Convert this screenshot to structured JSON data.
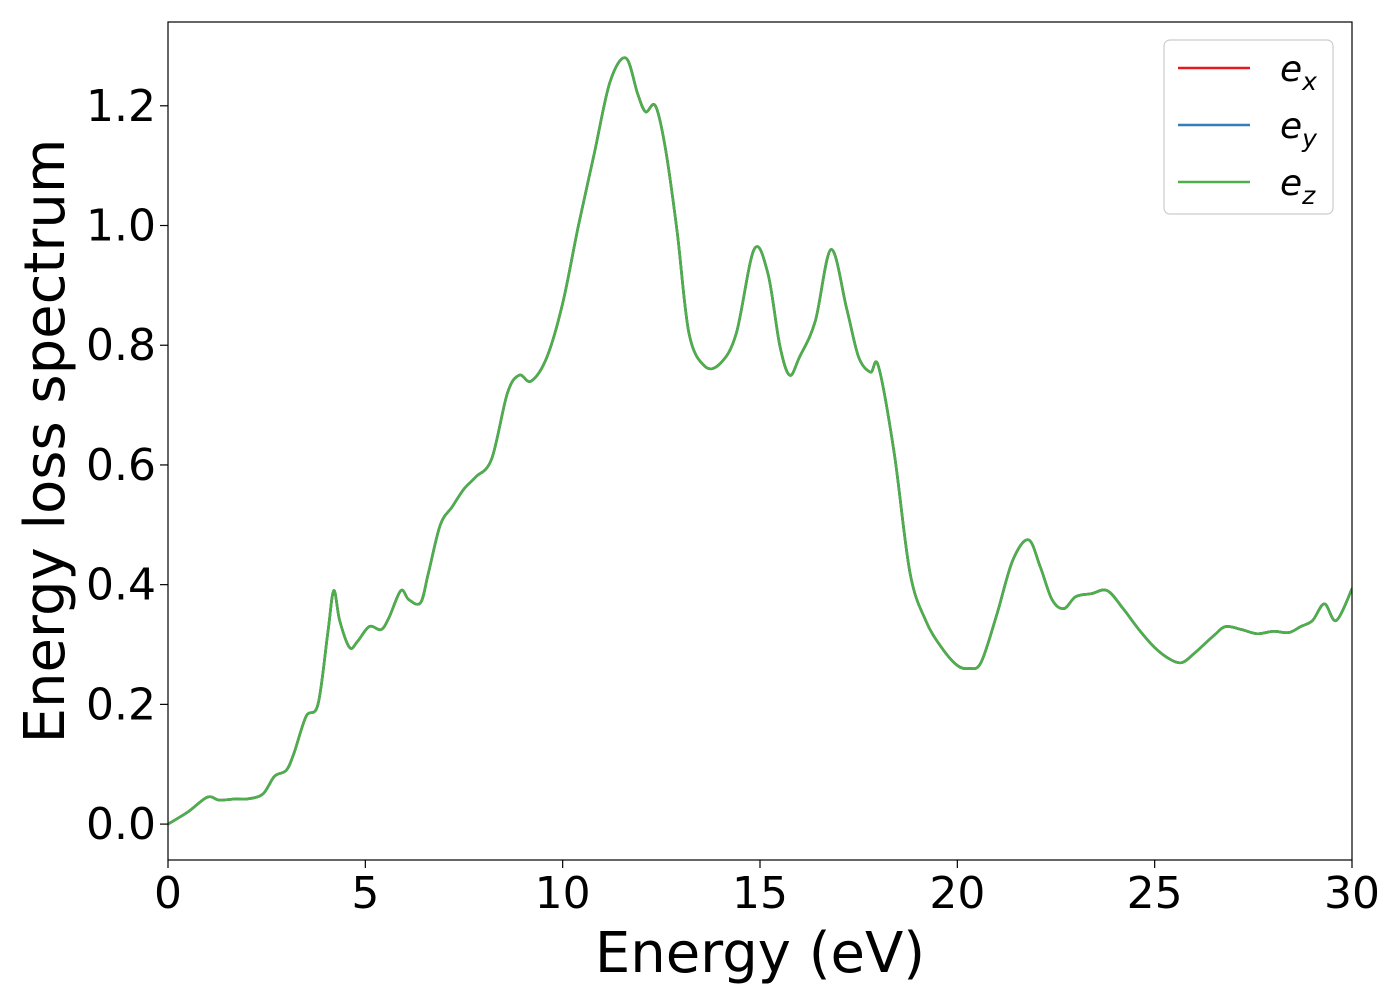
{
  "chart_data": {
    "type": "line",
    "title": "",
    "xlabel": "Energy (eV)",
    "ylabel": "Energy loss spectrum",
    "xlim": [
      0,
      30
    ],
    "ylim": [
      -0.06,
      1.34
    ],
    "xticks": [
      0,
      5,
      10,
      15,
      20,
      25,
      30
    ],
    "xtick_labels": [
      "0",
      "5",
      "10",
      "15",
      "20",
      "25",
      "30"
    ],
    "yticks": [
      0.0,
      0.2,
      0.4,
      0.6,
      0.8,
      1.0,
      1.2
    ],
    "ytick_labels": [
      "0.0",
      "0.2",
      "0.4",
      "0.6",
      "0.8",
      "1.0",
      "1.2"
    ],
    "grid": false,
    "legend": "top-right",
    "x": [
      0,
      0.5,
      1.0,
      1.3,
      1.7,
      2.0,
      2.4,
      2.7,
      3.0,
      3.2,
      3.5,
      3.8,
      4.05,
      4.2,
      4.35,
      4.6,
      4.8,
      5.1,
      5.4,
      5.6,
      5.9,
      6.1,
      6.4,
      6.6,
      6.9,
      7.2,
      7.5,
      7.8,
      8.2,
      8.6,
      8.9,
      9.2,
      9.6,
      10.0,
      10.4,
      10.8,
      11.2,
      11.6,
      11.9,
      12.1,
      12.35,
      12.6,
      12.9,
      13.2,
      13.6,
      14.0,
      14.4,
      14.85,
      15.2,
      15.5,
      15.75,
      16.0,
      16.4,
      16.8,
      17.2,
      17.5,
      17.8,
      18.0,
      18.4,
      18.8,
      19.2,
      19.6,
      20.0,
      20.3,
      20.6,
      21.0,
      21.4,
      21.8,
      22.1,
      22.4,
      22.7,
      23.0,
      23.4,
      23.8,
      24.2,
      24.6,
      25.0,
      25.4,
      25.7,
      26.0,
      26.5,
      26.8,
      27.2,
      27.6,
      28.0,
      28.4,
      28.7,
      29.0,
      29.3,
      29.6,
      30.0
    ],
    "series": [
      {
        "name": "e",
        "sub": "x",
        "color": "#e41a1c",
        "values": [
          0.0,
          0.02,
          0.045,
          0.04,
          0.042,
          0.042,
          0.05,
          0.08,
          0.09,
          0.12,
          0.18,
          0.2,
          0.32,
          0.39,
          0.34,
          0.295,
          0.305,
          0.33,
          0.325,
          0.345,
          0.39,
          0.375,
          0.37,
          0.42,
          0.5,
          0.53,
          0.56,
          0.58,
          0.61,
          0.72,
          0.75,
          0.74,
          0.78,
          0.87,
          1.0,
          1.12,
          1.24,
          1.28,
          1.22,
          1.19,
          1.2,
          1.13,
          0.99,
          0.82,
          0.765,
          0.77,
          0.82,
          0.96,
          0.92,
          0.8,
          0.75,
          0.78,
          0.84,
          0.96,
          0.86,
          0.78,
          0.755,
          0.765,
          0.62,
          0.42,
          0.34,
          0.295,
          0.265,
          0.26,
          0.27,
          0.35,
          0.44,
          0.475,
          0.43,
          0.375,
          0.36,
          0.38,
          0.385,
          0.39,
          0.36,
          0.325,
          0.295,
          0.275,
          0.27,
          0.285,
          0.315,
          0.33,
          0.325,
          0.318,
          0.322,
          0.32,
          0.33,
          0.34,
          0.368,
          0.34,
          0.393
        ]
      },
      {
        "name": "e",
        "sub": "y",
        "color": "#377eb8",
        "values": [
          0.0,
          0.02,
          0.045,
          0.04,
          0.042,
          0.042,
          0.05,
          0.08,
          0.09,
          0.12,
          0.18,
          0.2,
          0.32,
          0.39,
          0.34,
          0.295,
          0.305,
          0.33,
          0.325,
          0.345,
          0.39,
          0.375,
          0.37,
          0.42,
          0.5,
          0.53,
          0.56,
          0.58,
          0.61,
          0.72,
          0.75,
          0.74,
          0.78,
          0.87,
          1.0,
          1.12,
          1.24,
          1.28,
          1.22,
          1.19,
          1.2,
          1.13,
          0.99,
          0.82,
          0.765,
          0.77,
          0.82,
          0.96,
          0.92,
          0.8,
          0.75,
          0.78,
          0.84,
          0.96,
          0.86,
          0.78,
          0.755,
          0.765,
          0.62,
          0.42,
          0.34,
          0.295,
          0.265,
          0.26,
          0.27,
          0.35,
          0.44,
          0.475,
          0.43,
          0.375,
          0.36,
          0.38,
          0.385,
          0.39,
          0.36,
          0.325,
          0.295,
          0.275,
          0.27,
          0.285,
          0.315,
          0.33,
          0.325,
          0.318,
          0.322,
          0.32,
          0.33,
          0.34,
          0.368,
          0.34,
          0.393
        ]
      },
      {
        "name": "e",
        "sub": "z",
        "color": "#4daf4a",
        "values": [
          0.0,
          0.02,
          0.045,
          0.04,
          0.042,
          0.042,
          0.05,
          0.08,
          0.09,
          0.12,
          0.18,
          0.2,
          0.32,
          0.39,
          0.34,
          0.295,
          0.305,
          0.33,
          0.325,
          0.345,
          0.39,
          0.375,
          0.37,
          0.42,
          0.5,
          0.53,
          0.56,
          0.58,
          0.61,
          0.72,
          0.75,
          0.74,
          0.78,
          0.87,
          1.0,
          1.12,
          1.24,
          1.28,
          1.22,
          1.19,
          1.2,
          1.13,
          0.99,
          0.82,
          0.765,
          0.77,
          0.82,
          0.96,
          0.92,
          0.8,
          0.75,
          0.78,
          0.84,
          0.96,
          0.86,
          0.78,
          0.755,
          0.765,
          0.62,
          0.42,
          0.34,
          0.295,
          0.265,
          0.26,
          0.27,
          0.35,
          0.44,
          0.475,
          0.43,
          0.375,
          0.36,
          0.38,
          0.385,
          0.39,
          0.36,
          0.325,
          0.295,
          0.275,
          0.27,
          0.285,
          0.315,
          0.33,
          0.325,
          0.318,
          0.322,
          0.32,
          0.33,
          0.34,
          0.368,
          0.34,
          0.393
        ]
      }
    ]
  }
}
